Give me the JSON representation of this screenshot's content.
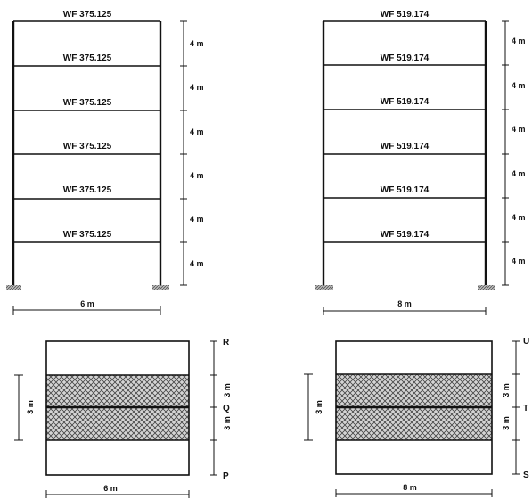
{
  "frames": [
    {
      "beams": [
        "WF 375.125",
        "WF 375.125",
        "WF 375.125",
        "WF 375.125",
        "WF 375.125",
        "WF 375.125"
      ],
      "storey_dims": [
        "4 m",
        "4 m",
        "4 m",
        "4 m",
        "4 m",
        "4 m"
      ],
      "span_dim": "6 m"
    },
    {
      "beams": [
        "WF 519.174",
        "WF 519.174",
        "WF 519.174",
        "WF 519.174",
        "WF 519.174",
        "WF 519.174"
      ],
      "storey_dims": [
        "4 m",
        "4 m",
        "4 m",
        "4 m",
        "4 m",
        "4 m"
      ],
      "span_dim": "8 m"
    }
  ],
  "plans": [
    {
      "points": [
        "R",
        "Q",
        "P"
      ],
      "right_dims": [
        "3 m",
        "3 m"
      ],
      "left_dim": "3 m",
      "width_dim": "6 m"
    },
    {
      "points": [
        "U",
        "T",
        "S"
      ],
      "right_dims": [
        "3 m",
        "3 m"
      ],
      "left_dim": "3 m",
      "width_dim": "8 m"
    }
  ]
}
